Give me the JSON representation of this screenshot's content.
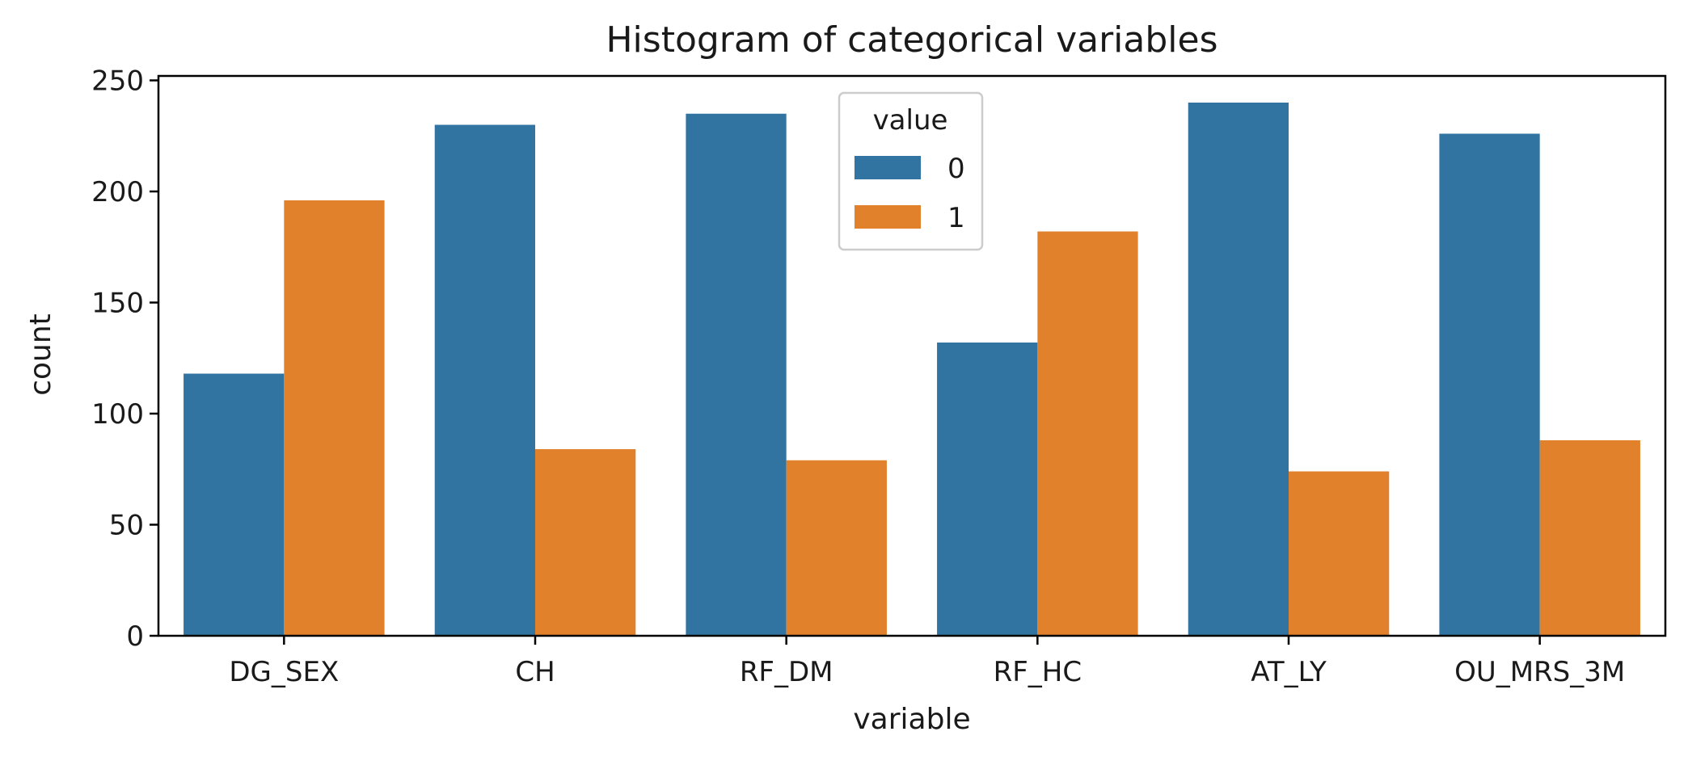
{
  "chart_data": {
    "type": "bar",
    "title": "Histogram of categorical variables",
    "xlabel": "variable",
    "ylabel": "count",
    "categories": [
      "DG_SEX",
      "CH",
      "RF_DM",
      "RF_HC",
      "AT_LY",
      "OU_MRS_3M"
    ],
    "series": [
      {
        "name": "0",
        "color": "#3274a1",
        "values": [
          118,
          230,
          235,
          132,
          240,
          226
        ]
      },
      {
        "name": "1",
        "color": "#e1812c",
        "values": [
          196,
          84,
          79,
          182,
          74,
          88
        ]
      }
    ],
    "ylim": [
      0,
      252
    ],
    "yticks": [
      0,
      50,
      100,
      150,
      200,
      250
    ],
    "legend": {
      "title": "value",
      "placement": "upper-center"
    },
    "grid": false
  }
}
